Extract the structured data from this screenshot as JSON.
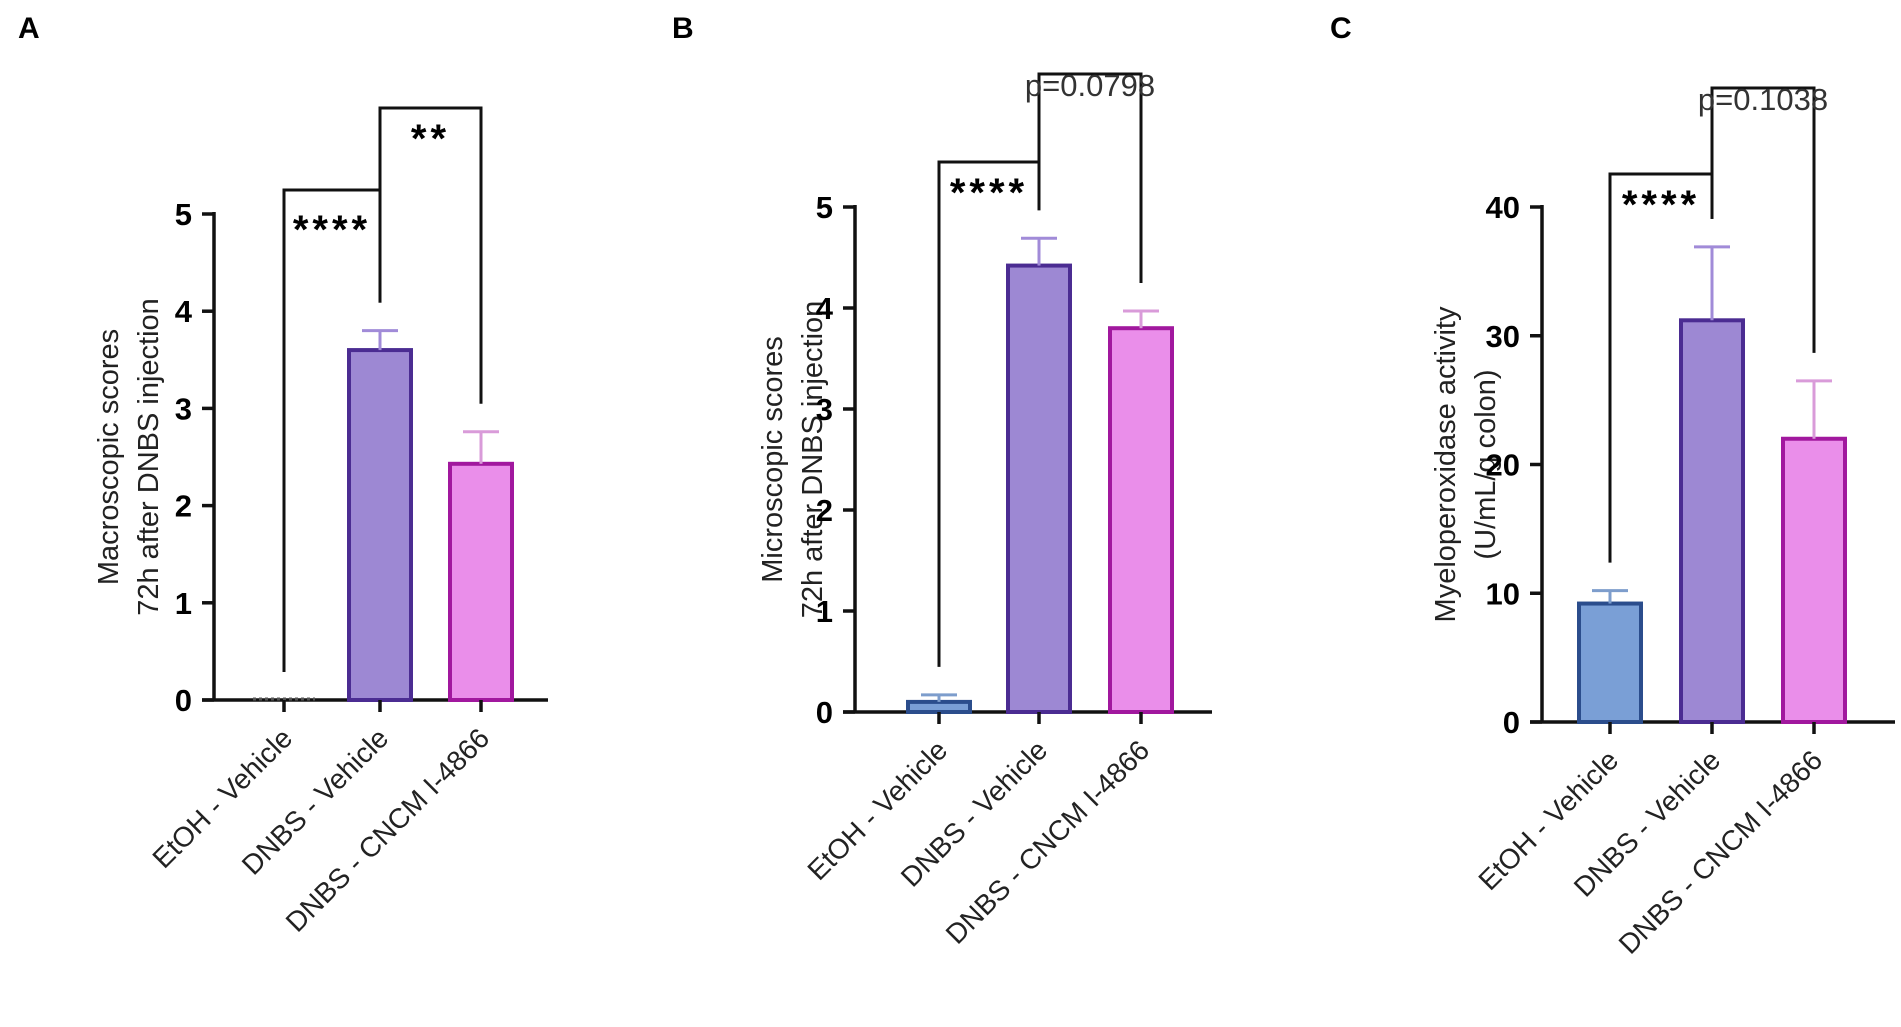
{
  "chart_data": [
    {
      "type": "bar",
      "panel": "A",
      "title": "",
      "ylabel_lines": [
        "Macroscopic scores",
        "72h after DNBS injection"
      ],
      "xlabel": "",
      "ylim": [
        0,
        5
      ],
      "yticks": [
        0,
        1,
        2,
        3,
        4,
        5
      ],
      "categories": [
        "EtOH - Vehicle",
        "DNBS - Vehicle",
        "DNBS - CNCM I-4866"
      ],
      "values": [
        0,
        3.6,
        2.43
      ],
      "errors": [
        0,
        0.2,
        0.33
      ],
      "fill_colors": [
        "#7a9fd6",
        "#9d88d3",
        "#ea8eea"
      ],
      "stroke_colors": [
        "#2b4d8c",
        "#4b2c92",
        "#a1189e"
      ],
      "error_colors": [
        "#7d9dcc",
        "#a18bd8",
        "#d99bd9"
      ],
      "comparisons": [
        {
          "pair": [
            0,
            1
          ],
          "label": "****"
        },
        {
          "pair": [
            1,
            2
          ],
          "label": "**"
        }
      ]
    },
    {
      "type": "bar",
      "panel": "B",
      "title": "",
      "ylabel_lines": [
        "Microscopic scores",
        "72h after DNBS injection"
      ],
      "xlabel": "",
      "ylim": [
        0,
        5
      ],
      "yticks": [
        0,
        1,
        2,
        3,
        4,
        5
      ],
      "categories": [
        "EtOH - Vehicle",
        "DNBS - Vehicle",
        "DNBS - CNCM I-4866"
      ],
      "values": [
        0.1,
        4.42,
        3.8
      ],
      "errors": [
        0.07,
        0.27,
        0.17
      ],
      "fill_colors": [
        "#7a9fd6",
        "#9d88d3",
        "#ea8eea"
      ],
      "stroke_colors": [
        "#2b4d8c",
        "#4b2c92",
        "#a1189e"
      ],
      "error_colors": [
        "#7d9dcc",
        "#a18bd8",
        "#d99bd9"
      ],
      "comparisons": [
        {
          "pair": [
            0,
            1
          ],
          "label": "****"
        },
        {
          "pair": [
            1,
            2
          ],
          "label": "p=0.0798"
        }
      ]
    },
    {
      "type": "bar",
      "panel": "C",
      "title": "",
      "ylabel_lines": [
        "Myeloperoxidase activity",
        "(U/mL/g colon)"
      ],
      "xlabel": "",
      "ylim": [
        0,
        40
      ],
      "yticks": [
        0,
        10,
        20,
        30,
        40
      ],
      "categories": [
        "EtOH - Vehicle",
        "DNBS - Vehicle",
        "DNBS - CNCM I-4866"
      ],
      "values": [
        9.2,
        31.2,
        22
      ],
      "errors": [
        1,
        5.7,
        4.5
      ],
      "fill_colors": [
        "#7a9fd6",
        "#9d88d3",
        "#ea8eea"
      ],
      "stroke_colors": [
        "#2b4d8c",
        "#4b2c92",
        "#a1189e"
      ],
      "error_colors": [
        "#7d9dcc",
        "#a18bd8",
        "#d99bd9"
      ],
      "comparisons": [
        {
          "pair": [
            0,
            1
          ],
          "label": "****"
        },
        {
          "pair": [
            1,
            2
          ],
          "label": "p=0.1038"
        }
      ]
    }
  ]
}
